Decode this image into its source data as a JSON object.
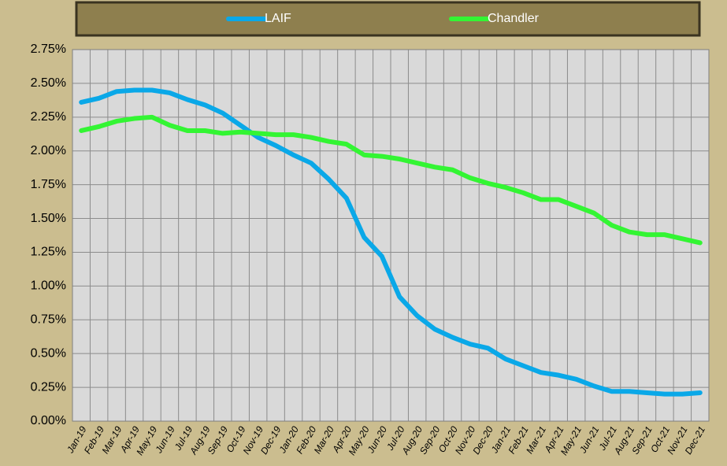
{
  "chart_data": {
    "type": "line",
    "categories": [
      "Jan-19",
      "Feb-19",
      "Mar-19",
      "Apr-19",
      "May-19",
      "Jun-19",
      "Jul-19",
      "Aug-19",
      "Sep-19",
      "Oct-19",
      "Nov-19",
      "Dec-19",
      "Jan-20",
      "Feb-20",
      "Mar-20",
      "Apr-20",
      "May-20",
      "Jun-20",
      "Jul-20",
      "Aug-20",
      "Sep-20",
      "Oct-20",
      "Nov-20",
      "Dec-20",
      "Jan-21",
      "Feb-21",
      "Mar-21",
      "Apr-21",
      "May-21",
      "Jun-21",
      "Jul-21",
      "Aug-21",
      "Sep-21",
      "Oct-21",
      "Nov-21",
      "Dec-21"
    ],
    "series": [
      {
        "name": "LAIF",
        "color": "#0aa8e8",
        "values": [
          2.36,
          2.39,
          2.44,
          2.45,
          2.45,
          2.43,
          2.38,
          2.34,
          2.28,
          2.19,
          2.1,
          2.04,
          1.97,
          1.91,
          1.79,
          1.65,
          1.36,
          1.22,
          0.92,
          0.78,
          0.68,
          0.62,
          0.57,
          0.54,
          0.46,
          0.41,
          0.36,
          0.34,
          0.31,
          0.26,
          0.22,
          0.22,
          0.21,
          0.2,
          0.2,
          0.21
        ]
      },
      {
        "name": "Chandler",
        "color": "#33f533",
        "values": [
          2.15,
          2.18,
          2.22,
          2.24,
          2.25,
          2.19,
          2.15,
          2.15,
          2.13,
          2.14,
          2.13,
          2.12,
          2.12,
          2.1,
          2.07,
          2.05,
          1.97,
          1.96,
          1.94,
          1.91,
          1.88,
          1.86,
          1.8,
          1.76,
          1.73,
          1.69,
          1.64,
          1.64,
          1.59,
          1.54,
          1.45,
          1.4,
          1.38,
          1.38,
          1.35,
          1.32
        ]
      }
    ],
    "ylim": [
      0,
      2.75
    ],
    "yticks": [
      {
        "value": 0,
        "label": "0.00%"
      },
      {
        "value": 0.25,
        "label": "0.25%"
      },
      {
        "value": 0.5,
        "label": "0.50%"
      },
      {
        "value": 0.75,
        "label": "0.75%"
      },
      {
        "value": 1,
        "label": "1.00%"
      },
      {
        "value": 1.25,
        "label": "1.25%"
      },
      {
        "value": 1.5,
        "label": "1.50%"
      },
      {
        "value": 1.75,
        "label": "1.75%"
      },
      {
        "value": 2,
        "label": "2.00%"
      },
      {
        "value": 2.25,
        "label": "2.25%"
      },
      {
        "value": 2.5,
        "label": "2.50%"
      },
      {
        "value": 2.75,
        "label": "2.75%"
      }
    ],
    "grid": true,
    "legend": "top"
  }
}
